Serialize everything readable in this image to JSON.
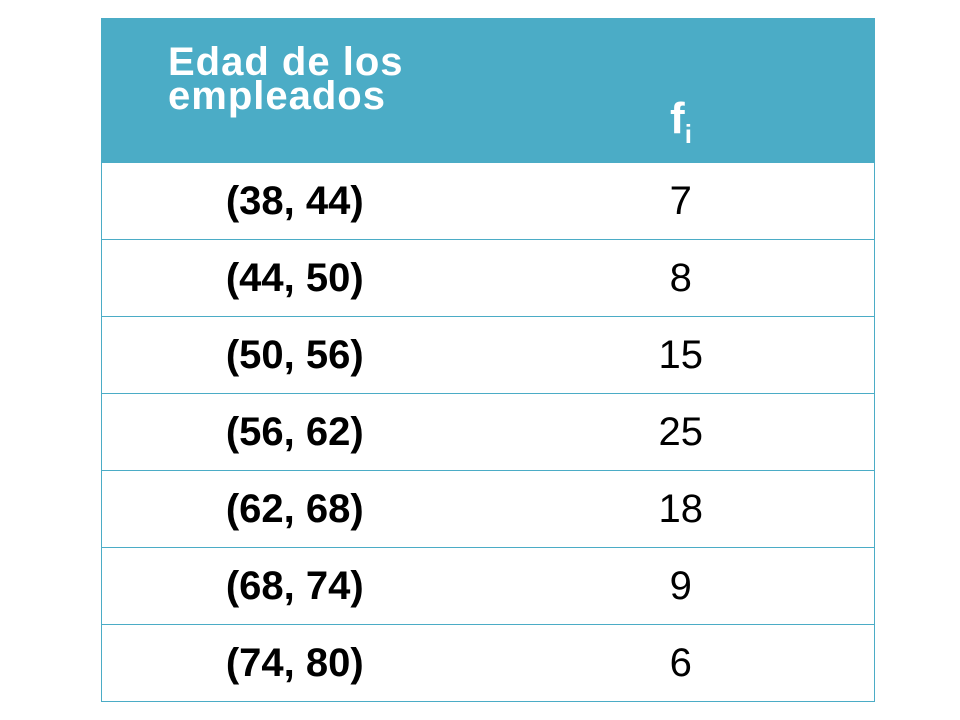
{
  "table": {
    "header": {
      "age_line1": "Edad de los",
      "age_line2": "empleados",
      "freq_main": "f",
      "freq_sub": "i"
    },
    "rows": [
      {
        "interval": "(38, 44)",
        "fi": "7"
      },
      {
        "interval": "(44, 50)",
        "fi": "8"
      },
      {
        "interval": "(50, 56)",
        "fi": "15"
      },
      {
        "interval": "(56, 62)",
        "fi": "25"
      },
      {
        "interval": "(62, 68)",
        "fi": "18"
      },
      {
        "interval": "(68, 74)",
        "fi": "9"
      },
      {
        "interval": "(74, 80)",
        "fi": "6"
      }
    ]
  },
  "colors": {
    "header_bg": "#4bacc6",
    "header_text": "#ffffff",
    "border": "#4bacc6",
    "body_text": "#000000"
  }
}
